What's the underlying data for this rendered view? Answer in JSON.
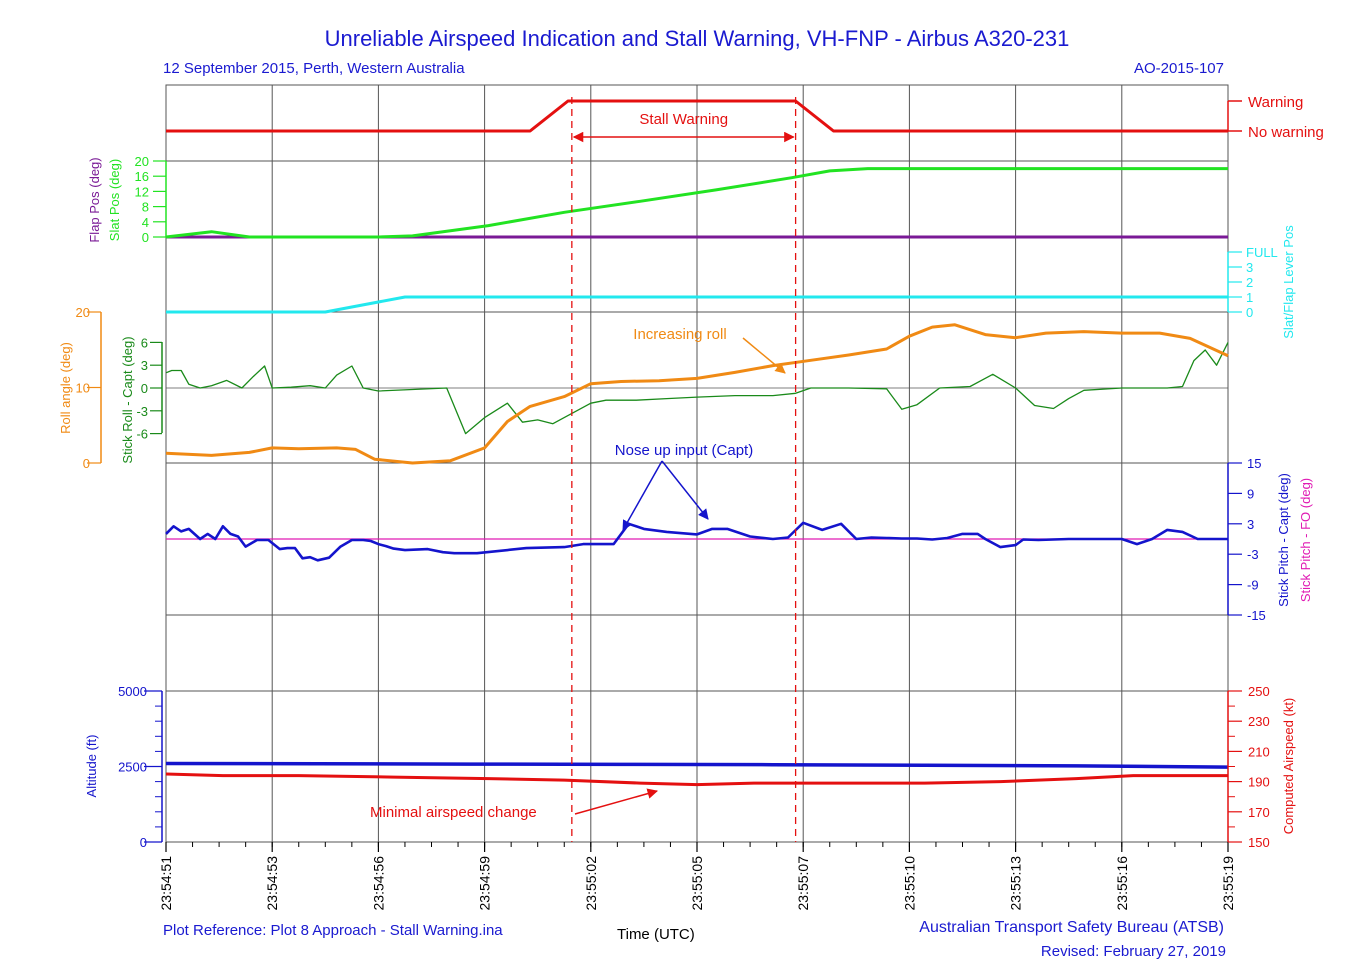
{
  "header": {
    "title": "Unreliable Airspeed Indication and Stall Warning, VH-FNP - Airbus A320-231",
    "subtitle_left": "12 September 2015, Perth, Western Australia",
    "subtitle_right": "AO-2015-107"
  },
  "footer": {
    "plot_reference": "Plot Reference: Plot 8 Approach - Stall Warning.ina",
    "xlabel": "Time (UTC)",
    "agency": "Australian Transport Safety Bureau (ATSB)",
    "revised": "Revised: February 27, 2019"
  },
  "colors": {
    "red": "#e41010",
    "green": "#22e322",
    "purple": "#7a1a96",
    "cyan": "#22e8ee",
    "orange": "#f08a14",
    "dkgreen": "#1a8a1a",
    "blue": "#1414cc",
    "pink": "#e01ab4",
    "grid": "#555555"
  },
  "chart_data": {
    "type": "line",
    "x_axis": {
      "label": "Time (UTC)",
      "range_seconds": [
        0,
        28
      ],
      "tick_seconds": [
        0,
        2.8,
        5.6,
        8.4,
        11.2,
        14,
        16.8,
        19.6,
        22.4,
        25.2,
        28
      ],
      "tick_labels": [
        "23:54:51",
        "23:54:53",
        "23:54:56",
        "23:54:59",
        "23:55:02",
        "23:55:05",
        "23:55:07",
        "23:55:10",
        "23:55:13",
        "23:55:16",
        "23:55:19"
      ]
    },
    "vertical_markers": [
      10.7,
      16.6
    ],
    "annotations": {
      "stall_warning": "Stall Warning",
      "increasing_roll": "Increasing roll",
      "nose_up": "Nose up input (Capt)",
      "minimal_airspeed": "Minimal airspeed change"
    },
    "panels": {
      "stall": {
        "labels": [
          "Warning",
          "No warning"
        ],
        "x": [
          0,
          9.6,
          10.6,
          16.6,
          17.6,
          28
        ],
        "y": [
          0,
          0,
          1,
          1,
          0,
          0
        ]
      },
      "flaps": {
        "slat_label": "Slat Pos (deg)",
        "flap_label": "Flap Pos (deg)",
        "ticks": [
          0,
          4,
          8,
          12,
          16,
          20
        ],
        "ylim": [
          0,
          20
        ],
        "slat_x": [
          0,
          1.2,
          2.2,
          5.6,
          6.5,
          8.5,
          10.5,
          12.5,
          14.5,
          16.5,
          17.5,
          18.5,
          28
        ],
        "slat_y": [
          0,
          1.4,
          0,
          0,
          0.3,
          3,
          6.5,
          9.4,
          12.4,
          15.6,
          17.4,
          18,
          18
        ],
        "flap_x": [
          0,
          28
        ],
        "flap_y": [
          0,
          0
        ]
      },
      "lever": {
        "label": "Slat/Flap Lever Pos",
        "ticks": [
          "0",
          "1",
          "2",
          "3",
          "FULL"
        ],
        "ylim": [
          0,
          4
        ],
        "x": [
          0,
          4.2,
          6.3,
          28
        ],
        "y": [
          0,
          0,
          1,
          1
        ]
      },
      "roll": {
        "roll_label": "Roll angle (deg)",
        "roll_ticks": [
          0,
          10,
          20
        ],
        "roll_ylim": [
          0,
          20
        ],
        "stick_label": "Stick Roll - Capt (deg)",
        "stick_ticks": [
          -6,
          -3,
          0,
          3,
          6
        ],
        "stick_ylim": [
          -10,
          10
        ],
        "roll_x": [
          0,
          1.2,
          2.2,
          2.8,
          3.5,
          4.5,
          5.0,
          5.5,
          6.5,
          7.5,
          8.4,
          9.0,
          9.6,
          10.5,
          11.2,
          12.0,
          13.0,
          14.0,
          15.0,
          16.0,
          17.0,
          18.0,
          19.0,
          19.6,
          20.2,
          20.8,
          21.6,
          22.4,
          23.2,
          24.2,
          25.2,
          26.2,
          27.0,
          28.0
        ],
        "roll_y": [
          1.3,
          1.0,
          1.4,
          2.0,
          1.9,
          2.0,
          1.8,
          0.5,
          0.0,
          0.3,
          2.0,
          5.5,
          7.5,
          8.8,
          10.5,
          10.8,
          10.9,
          11.2,
          12.0,
          12.9,
          13.6,
          14.3,
          15.1,
          16.8,
          18.0,
          18.3,
          17.0,
          16.6,
          17.2,
          17.4,
          17.2,
          17.2,
          16.5,
          14.2
        ],
        "stick_x": [
          0,
          0.15,
          0.4,
          0.6,
          0.9,
          1.2,
          1.6,
          2.0,
          2.3,
          2.6,
          2.8,
          3.3,
          3.8,
          4.2,
          4.5,
          4.9,
          5.2,
          5.6,
          7.4,
          7.9,
          8.4,
          9.0,
          9.4,
          9.8,
          10.2,
          11.2,
          11.6,
          12.4,
          13.2,
          14.0,
          15.0,
          16.0,
          16.6,
          17.0,
          18.0,
          19.0,
          19.4,
          19.8,
          20.4,
          21.2,
          21.8,
          22.4,
          22.9,
          23.4,
          23.8,
          24.2,
          25.2,
          26.4,
          26.8,
          27.1,
          27.4,
          27.7,
          28.0
        ],
        "stick_y": [
          2.0,
          2.3,
          2.3,
          0.5,
          0,
          0.3,
          1.0,
          0,
          1.5,
          2.9,
          0,
          0.1,
          0.3,
          0,
          1.7,
          2.9,
          0,
          -0.4,
          0,
          -6.0,
          -3.9,
          -2.0,
          -4.5,
          -4.2,
          -4.7,
          -2.0,
          -1.6,
          -1.6,
          -1.4,
          -1.2,
          -1.0,
          -1.0,
          -0.7,
          0,
          0,
          -0.1,
          -2.8,
          -2.2,
          0,
          0.2,
          1.8,
          0,
          -2.3,
          -2.7,
          -1.4,
          -0.3,
          0,
          0,
          0.2,
          3.6,
          5.0,
          3.0,
          6.0
        ]
      },
      "pitch": {
        "capt_label": "Stick Pitch - Capt (deg)",
        "fo_label": "Stick Pitch - FO (deg)",
        "ticks": [
          -15,
          -9,
          -3,
          3,
          9,
          15
        ],
        "ylim": [
          -15,
          15
        ],
        "capt_x": [
          0,
          0.2,
          0.4,
          0.6,
          0.9,
          1.1,
          1.3,
          1.5,
          1.7,
          1.9,
          2.1,
          2.4,
          2.7,
          3.0,
          3.2,
          3.4,
          3.6,
          3.8,
          4.0,
          4.3,
          4.6,
          4.9,
          5.2,
          5.4,
          5.6,
          5.8,
          6.0,
          6.3,
          6.6,
          6.9,
          7.3,
          7.6,
          7.9,
          8.2,
          9.5,
          10.5,
          11.0,
          11.8,
          12.2,
          12.6,
          13.2,
          14.0,
          14.4,
          14.8,
          15.4,
          16.0,
          16.4,
          16.8,
          17.3,
          17.8,
          18.2,
          18.6,
          19.0,
          19.4,
          19.8,
          20.2,
          20.6,
          21.0,
          21.4,
          21.6,
          22.0,
          22.4,
          22.6,
          23.0,
          23.4,
          23.8,
          24.2,
          25.2,
          25.6,
          26.0,
          26.4,
          26.8,
          27.2,
          27.6,
          28.0
        ],
        "capt_y": [
          1,
          2.5,
          1.5,
          2,
          0,
          1,
          0,
          2.5,
          1,
          0.5,
          -1.5,
          -0.2,
          -0.2,
          -2.0,
          -1.8,
          -1.8,
          -3.8,
          -3.6,
          -4.2,
          -3.7,
          -1.5,
          -0.2,
          -0.2,
          -0.4,
          -1.0,
          -1.4,
          -1.9,
          -2.2,
          -2.1,
          -2.0,
          -2.6,
          -2.8,
          -2.8,
          -2.8,
          -1.8,
          -1.6,
          -1.0,
          -1.0,
          3.0,
          2.0,
          1.4,
          0.9,
          2.0,
          2.0,
          0.5,
          0,
          0.3,
          3.2,
          1.8,
          3.0,
          0,
          0.3,
          0.2,
          0.1,
          0.1,
          -0.1,
          0.2,
          1.0,
          1.0,
          0,
          -1.6,
          -1.2,
          -0.1,
          -0.2,
          -0.1,
          0,
          0,
          0,
          -1.0,
          0,
          1.8,
          1.4,
          0,
          0,
          0
        ],
        "fo_x": [
          0,
          28
        ],
        "fo_y": [
          0,
          0
        ]
      },
      "altitude": {
        "alt_label": "Altitude (ft)",
        "alt_ticks": [
          0,
          2500,
          5000
        ],
        "alt_ylim": [
          0,
          5000
        ],
        "spd_label": "Computed Airspeed (kt)",
        "spd_ticks": [
          150,
          170,
          190,
          210,
          230,
          250
        ],
        "spd_ylim": [
          150,
          250
        ],
        "alt_x": [
          0,
          4,
          8,
          12,
          16,
          20,
          24,
          28
        ],
        "alt_y": [
          2600,
          2590,
          2580,
          2570,
          2560,
          2540,
          2520,
          2480
        ],
        "spd_x": [
          0,
          1.5,
          3.5,
          6,
          8.5,
          10.5,
          12.5,
          14,
          15.5,
          18,
          20,
          22,
          24,
          25.5,
          28
        ],
        "spd_y": [
          195,
          194,
          194,
          193,
          192,
          191,
          189,
          188,
          189,
          189,
          189,
          190,
          192,
          194,
          194
        ]
      }
    }
  }
}
